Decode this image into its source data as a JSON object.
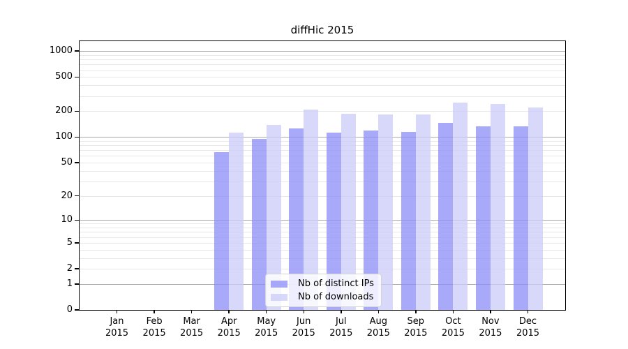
{
  "title": "diffHic 2015",
  "colors": {
    "ips_bar": "rgba(140,140,248,0.75)",
    "downloads_bar": "rgba(203,203,248,0.75)",
    "major_grid": "#aaaaaa",
    "minor_grid": "#e8e8e8",
    "axis": "#000000",
    "legend_border": "#d4d4d4",
    "legend_bg": "rgba(255,255,255,0.8)"
  },
  "legend": {
    "items": [
      {
        "label": "Nb of distinct IPs",
        "color_key": "ips_bar"
      },
      {
        "label": "Nb of downloads",
        "color_key": "downloads_bar"
      }
    ]
  },
  "chart_data": {
    "type": "bar",
    "title": "diffHic 2015",
    "categories": [
      "Jan 2015",
      "Feb 2015",
      "Mar 2015",
      "Apr 2015",
      "May 2015",
      "Jun 2015",
      "Jul 2015",
      "Aug 2015",
      "Sep 2015",
      "Oct 2015",
      "Nov 2015",
      "Dec 2015"
    ],
    "series": [
      {
        "name": "Nb of distinct IPs",
        "values": [
          0,
          0,
          0,
          66,
          95,
          125,
          113,
          119,
          114,
          147,
          133,
          133
        ]
      },
      {
        "name": "Nb of downloads",
        "values": [
          0,
          0,
          0,
          112,
          139,
          208,
          186,
          183,
          183,
          252,
          242,
          220
        ]
      }
    ],
    "xlabel": "",
    "ylabel": "",
    "y_ticks": [
      0,
      1,
      2,
      5,
      10,
      20,
      50,
      100,
      200,
      500,
      1000
    ],
    "y_scale": "log10(value+1)",
    "y_max_value": 1300,
    "grid": "horizontal; minor lines at 2-9 per decade, major lines at 1, 10, 100, 1000",
    "legend_position": "inside bottom-center"
  }
}
